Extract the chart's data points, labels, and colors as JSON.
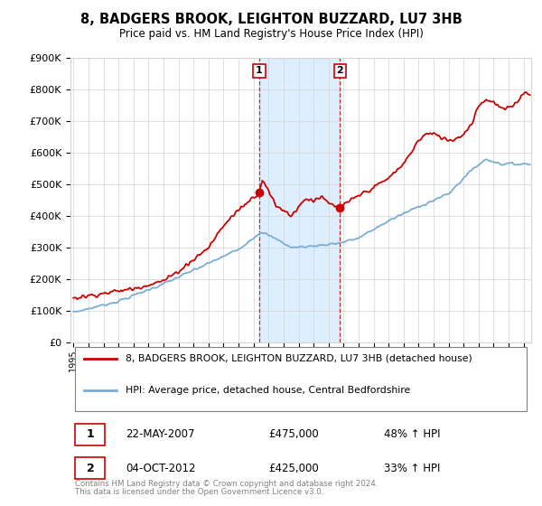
{
  "title": "8, BADGERS BROOK, LEIGHTON BUZZARD, LU7 3HB",
  "subtitle": "Price paid vs. HM Land Registry's House Price Index (HPI)",
  "legend_property": "8, BADGERS BROOK, LEIGHTON BUZZARD, LU7 3HB (detached house)",
  "legend_hpi": "HPI: Average price, detached house, Central Bedfordshire",
  "sale1_label": "1",
  "sale1_date": "22-MAY-2007",
  "sale1_price": "£475,000",
  "sale1_hpi": "48% ↑ HPI",
  "sale1_year": 2007.38,
  "sale1_value": 475000,
  "sale2_label": "2",
  "sale2_date": "04-OCT-2012",
  "sale2_price": "£425,000",
  "sale2_hpi": "33% ↑ HPI",
  "sale2_year": 2012.75,
  "sale2_value": 425000,
  "ylim": [
    0,
    900000
  ],
  "xlim": [
    1994.8,
    2025.5
  ],
  "property_line_color": "#cc0000",
  "hpi_line_color": "#7aadd4",
  "shade_color": "#ddeeff",
  "footer1": "Contains HM Land Registry data © Crown copyright and database right 2024.",
  "footer2": "This data is licensed under the Open Government Licence v3.0."
}
